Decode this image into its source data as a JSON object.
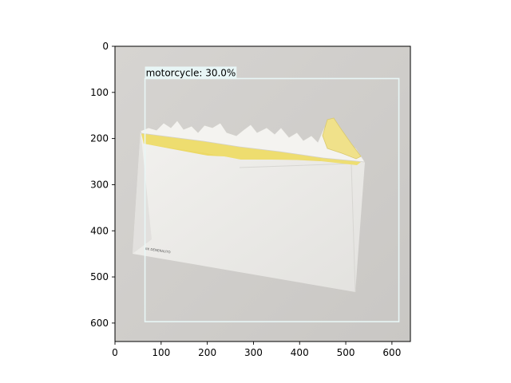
{
  "axes": {
    "x_range": [
      0,
      640
    ],
    "y_range": [
      0,
      640
    ],
    "x_ticks": [
      0,
      100,
      200,
      300,
      400,
      500,
      600
    ],
    "y_ticks": [
      0,
      100,
      200,
      300,
      400,
      500,
      600
    ],
    "y_inverted": true
  },
  "image": {
    "subject": "torn-open-envelope",
    "background_color": "#cfcdca",
    "envelope_color": "#ecebe8",
    "flap_color": "#eede72"
  },
  "detection": {
    "label": "motorcycle: 30.0%",
    "box": {
      "x0": 65,
      "y0": 70,
      "x1": 615,
      "y1": 597
    },
    "box_color": "#e8f6f6",
    "label_bg": "#e8f6f6"
  },
  "envelope_print": "IIK DENENAUTO"
}
